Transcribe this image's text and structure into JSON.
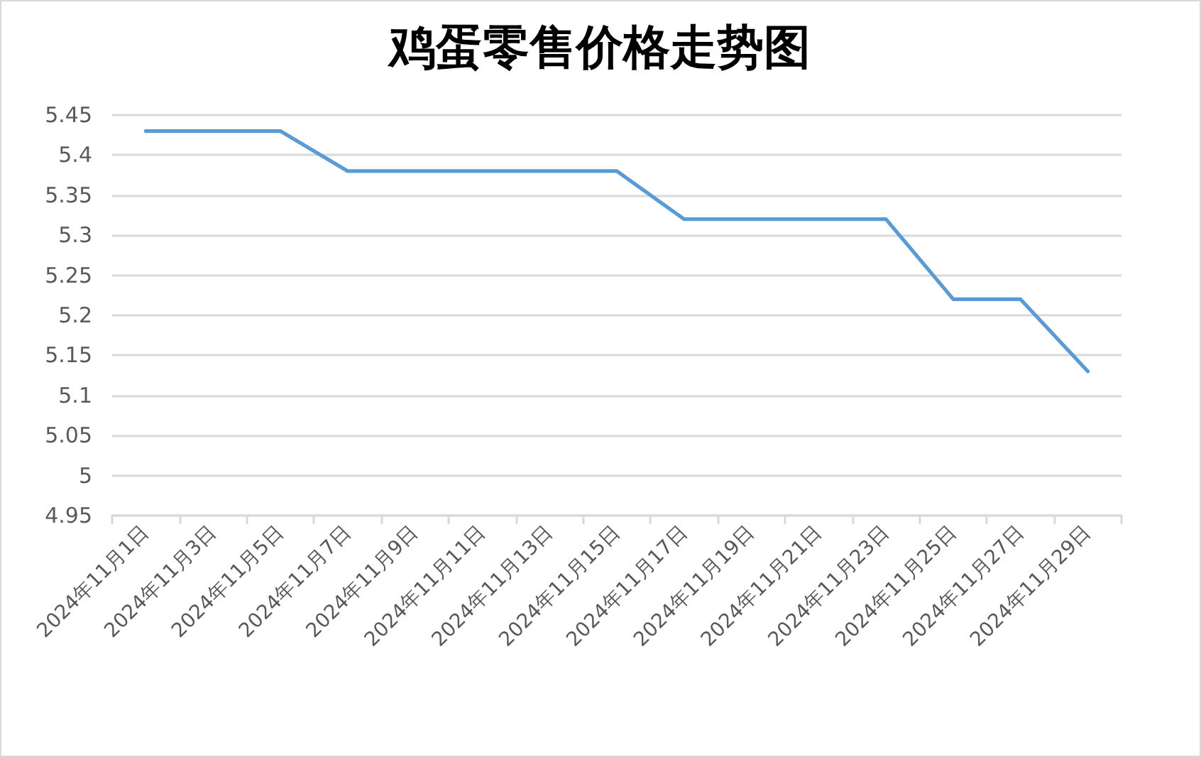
{
  "chart_data": {
    "type": "line",
    "title": "鸡蛋零售价格走势图",
    "categories": [
      "2024年11月1日",
      "2024年11月3日",
      "2024年11月5日",
      "2024年11月7日",
      "2024年11月9日",
      "2024年11月11日",
      "2024年11月13日",
      "2024年11月15日",
      "2024年11月17日",
      "2024年11月19日",
      "2024年11月21日",
      "2024年11月23日",
      "2024年11月25日",
      "2024年11月27日",
      "2024年11月29日"
    ],
    "values": [
      5.43,
      5.43,
      5.43,
      5.38,
      5.38,
      5.38,
      5.38,
      5.38,
      5.32,
      5.32,
      5.32,
      5.32,
      5.22,
      5.22,
      5.13
    ],
    "color": "#5b9bd5",
    "ylim": [
      4.95,
      5.45
    ],
    "yticks": [
      4.95,
      5,
      5.05,
      5.1,
      5.15,
      5.2,
      5.25,
      5.3,
      5.35,
      5.4,
      5.45
    ],
    "grid": "y",
    "marker": "none",
    "line_style": "solid"
  }
}
